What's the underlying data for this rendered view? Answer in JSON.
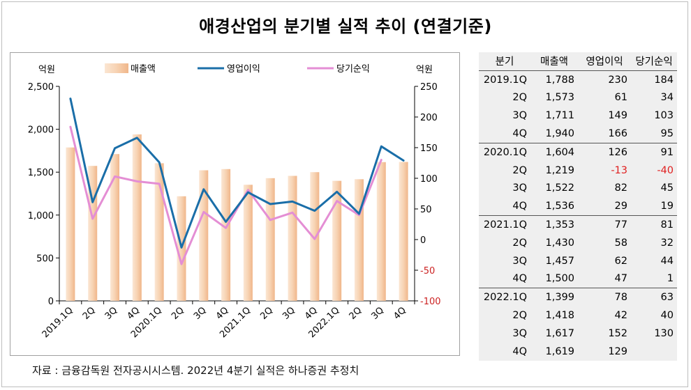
{
  "title": "애경산업의 분기별 실적 추이 (연결기준)",
  "source": "자료 : 금융감독원 전자공시시스템. 2022년 4분기 실적은 하나증권 추정치",
  "colors": {
    "bar": "#f7d3b3",
    "bar_edge": "#f0b68a",
    "op": "#1a6ea8",
    "net": "#e48ed4",
    "neg_text": "#e02020",
    "right_axis": "#cc2222"
  },
  "table": {
    "headers": [
      "분기",
      "매출액",
      "영업이익",
      "당기순익"
    ],
    "rows": [
      [
        "2019.1Q",
        "1,788",
        "230",
        "184"
      ],
      [
        "2Q",
        "1,573",
        "61",
        "34"
      ],
      [
        "3Q",
        "1,711",
        "149",
        "103"
      ],
      [
        "4Q",
        "1,940",
        "166",
        "95"
      ],
      [
        "2020.1Q",
        "1,604",
        "126",
        "91"
      ],
      [
        "2Q",
        "1,219",
        "-13",
        "-40"
      ],
      [
        "3Q",
        "1,522",
        "82",
        "45"
      ],
      [
        "4Q",
        "1,536",
        "29",
        "19"
      ],
      [
        "2021.1Q",
        "1,353",
        "77",
        "81"
      ],
      [
        "2Q",
        "1,430",
        "58",
        "32"
      ],
      [
        "3Q",
        "1,457",
        "62",
        "44"
      ],
      [
        "4Q",
        "1,500",
        "47",
        "1"
      ],
      [
        "2022.1Q",
        "1,399",
        "78",
        "63"
      ],
      [
        "2Q",
        "1,418",
        "42",
        "40"
      ],
      [
        "3Q",
        "1,617",
        "152",
        "130"
      ],
      [
        "4Q",
        "1,619",
        "129",
        ""
      ]
    ]
  },
  "chart_data": {
    "type": "bar",
    "categories": [
      "2019.1Q",
      "2Q",
      "3Q",
      "4Q",
      "2020.1Q",
      "2Q",
      "3Q",
      "4Q",
      "2021.1Q",
      "2Q",
      "3Q",
      "4Q",
      "2022.1Q",
      "2Q",
      "3Q",
      "4Q"
    ],
    "left_unit": "억원",
    "right_unit": "억원",
    "left_ylim": [
      0,
      2500
    ],
    "left_ticks": [
      "0",
      "500",
      "1,000",
      "1,500",
      "2,000",
      "2,500"
    ],
    "right_ylim": [
      -100,
      250
    ],
    "right_ticks": [
      "-100",
      "-50",
      "0",
      "50",
      "100",
      "150",
      "200",
      "250"
    ],
    "legend_position": "top",
    "series": [
      {
        "name": "매출액",
        "type": "bar",
        "axis": "left",
        "values": [
          1788,
          1573,
          1711,
          1940,
          1604,
          1219,
          1522,
          1536,
          1353,
          1430,
          1457,
          1500,
          1399,
          1418,
          1617,
          1619
        ]
      },
      {
        "name": "영업이익",
        "type": "line",
        "axis": "right",
        "values": [
          230,
          61,
          149,
          166,
          126,
          -13,
          82,
          29,
          77,
          58,
          62,
          47,
          78,
          42,
          152,
          129
        ]
      },
      {
        "name": "당기순익",
        "type": "line",
        "axis": "right",
        "values": [
          184,
          34,
          103,
          95,
          91,
          -40,
          45,
          19,
          81,
          32,
          44,
          1,
          63,
          40,
          130,
          null
        ]
      }
    ]
  }
}
